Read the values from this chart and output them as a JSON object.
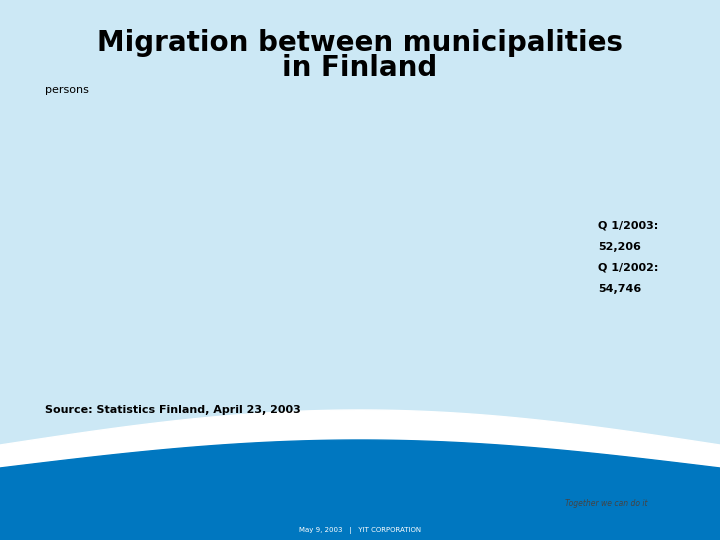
{
  "title_line1": "Migration between municipalities",
  "title_line2": "in Finland",
  "subtitle": "persons",
  "label_q1_2003": "Q 1/2003:",
  "value_q1_2003": "52,206",
  "label_q1_2002": "Q 1/2002:",
  "value_q1_2002": "54,746",
  "source_text": "Source: Statistics Finland, April 23, 2003",
  "footer_text": "May 9, 2003   |   YIT CORPORATION",
  "tagline": "Together we can do it",
  "bg_color": "#cce8f5",
  "title_color": "#000000",
  "text_color": "#000000",
  "wave_color_blue": "#0077c0",
  "yit_color": "#0077c0",
  "title_fontsize": 20,
  "subtitle_fontsize": 8,
  "data_fontsize": 8,
  "source_fontsize": 8,
  "footer_fontsize": 5,
  "tagline_fontsize": 5.5,
  "yit_fontsize": 20
}
